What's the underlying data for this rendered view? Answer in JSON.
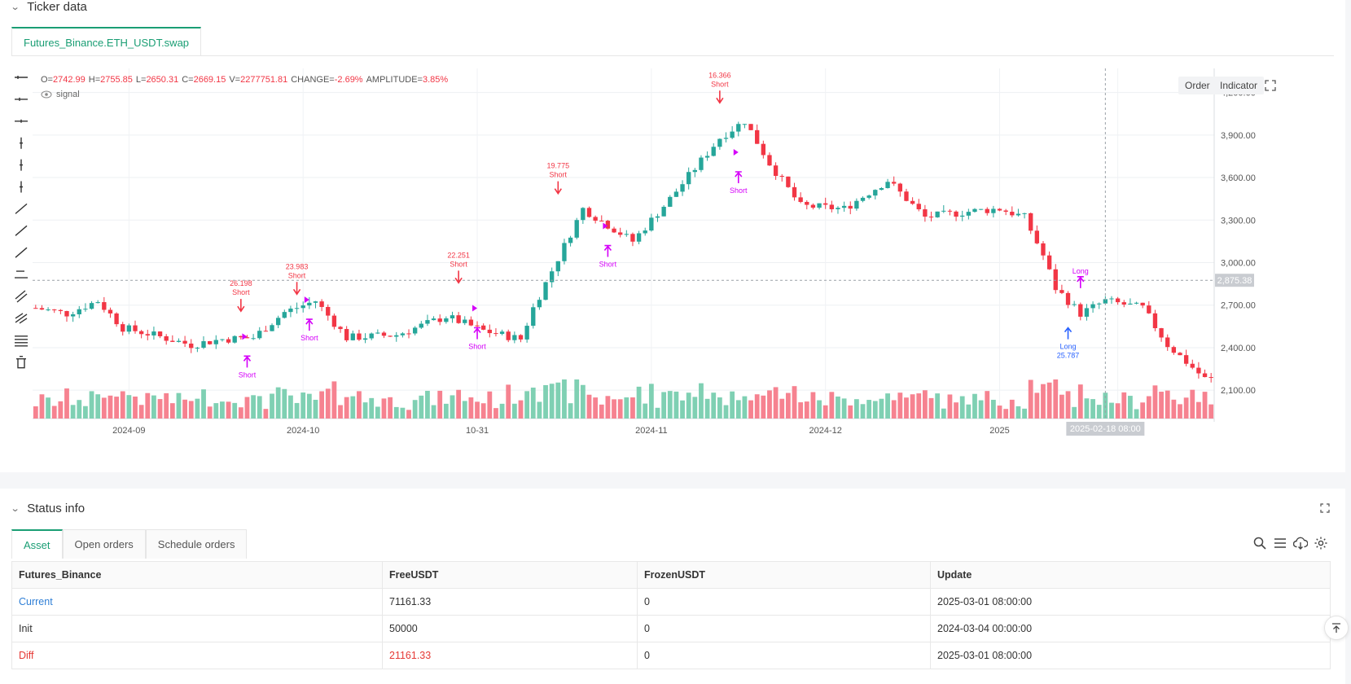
{
  "ticker_panel": {
    "title": "Ticker data",
    "tab": "Futures_Binance.ETH_USDT.swap"
  },
  "chart_header": {
    "ohlc": [
      {
        "k": "O=",
        "v": "2742.99"
      },
      {
        "k": "H=",
        "v": "2755.85"
      },
      {
        "k": "L=",
        "v": "2650.31"
      },
      {
        "k": "C=",
        "v": "2669.15"
      },
      {
        "k": "V=",
        "v": "2277751.81"
      },
      {
        "k": "CHANGE=",
        "v": "-2.69%"
      },
      {
        "k": "AMPLITUDE=",
        "v": "3.85%"
      }
    ],
    "signal_label": "signal",
    "order_button": "Order",
    "indicator_button": "Indicator"
  },
  "chart_data": {
    "type": "candlestick",
    "colors": {
      "up": "#26a69a",
      "down": "#f23645",
      "up_vol": "#7fd0b3",
      "down_vol": "#f68290",
      "marker_sell": "#f23645",
      "marker_entry": "#d500f9",
      "marker_buy": "#2962ff"
    },
    "y_ticks": [
      "4,200.00",
      "3,900.00",
      "3,600.00",
      "3,300.00",
      "3,000.00",
      "2,700.00",
      "2,400.00",
      "2,100.00"
    ],
    "y_tick_values": [
      4200,
      3900,
      3600,
      3300,
      3000,
      2700,
      2400,
      2100
    ],
    "ylim": [
      1900,
      4370
    ],
    "x_ticks": [
      "2024-09",
      "2024-10",
      "10-31",
      "2024-11",
      "2024-12",
      "2025",
      "2025-02"
    ],
    "x_tick_index": [
      15,
      43,
      71,
      99,
      127,
      155,
      174
    ],
    "last_price_label": "2,875.38",
    "last_price": 2875.38,
    "crosshair_time": "2025-02-18 08:00",
    "crosshair_index": 172,
    "candle_count": 190,
    "ohlc_series": [],
    "annotations": [
      {
        "i": 33,
        "label": "26.198",
        "type": "Short",
        "style": "sell",
        "price": 2640
      },
      {
        "i": 42,
        "label": "23.983",
        "type": "Short",
        "style": "sell",
        "price": 2760
      },
      {
        "i": 68,
        "label": "22.251",
        "type": "Short",
        "style": "sell",
        "price": 2840
      },
      {
        "i": 84,
        "label": "19.775",
        "type": "Short",
        "style": "sell",
        "price": 3470
      },
      {
        "i": 110,
        "label": "16.366",
        "type": "Short",
        "style": "sell",
        "price": 4110
      },
      {
        "i": 34,
        "label": "",
        "type": "Short",
        "style": "entry",
        "price": 2260
      },
      {
        "i": 44,
        "label": "",
        "type": "Short",
        "style": "entry",
        "price": 2520
      },
      {
        "i": 71,
        "label": "",
        "type": "Short",
        "style": "entry",
        "price": 2460
      },
      {
        "i": 92,
        "label": "",
        "type": "Short",
        "style": "entry",
        "price": 3040
      },
      {
        "i": 113,
        "label": "",
        "type": "Short",
        "style": "entry",
        "price": 3560
      },
      {
        "i": 166,
        "label": "25.787",
        "type": "Long",
        "style": "buy",
        "price": 2540
      },
      {
        "i": 168,
        "label": "",
        "type": "Long",
        "style": "entry_up",
        "price": 2820
      }
    ]
  },
  "status_panel": {
    "title": "Status info",
    "tabs": [
      "Asset",
      "Open orders",
      "Schedule orders"
    ],
    "columns": [
      "Futures_Binance",
      "FreeUSDT",
      "FrozenUSDT",
      "Update"
    ],
    "rows": [
      {
        "name": "Current",
        "free": "71161.33",
        "frozen": "0",
        "update": "2025-03-01 08:00:00",
        "name_color": "#2f7fd6",
        "free_color": "#333333"
      },
      {
        "name": "Init",
        "free": "50000",
        "frozen": "0",
        "update": "2024-03-04 00:00:00",
        "name_color": "#333333",
        "free_color": "#333333"
      },
      {
        "name": "Diff",
        "free": "21161.33",
        "frozen": "0",
        "update": "2025-03-01 08:00:00",
        "name_color": "#e53935",
        "free_color": "#e53935"
      }
    ]
  }
}
